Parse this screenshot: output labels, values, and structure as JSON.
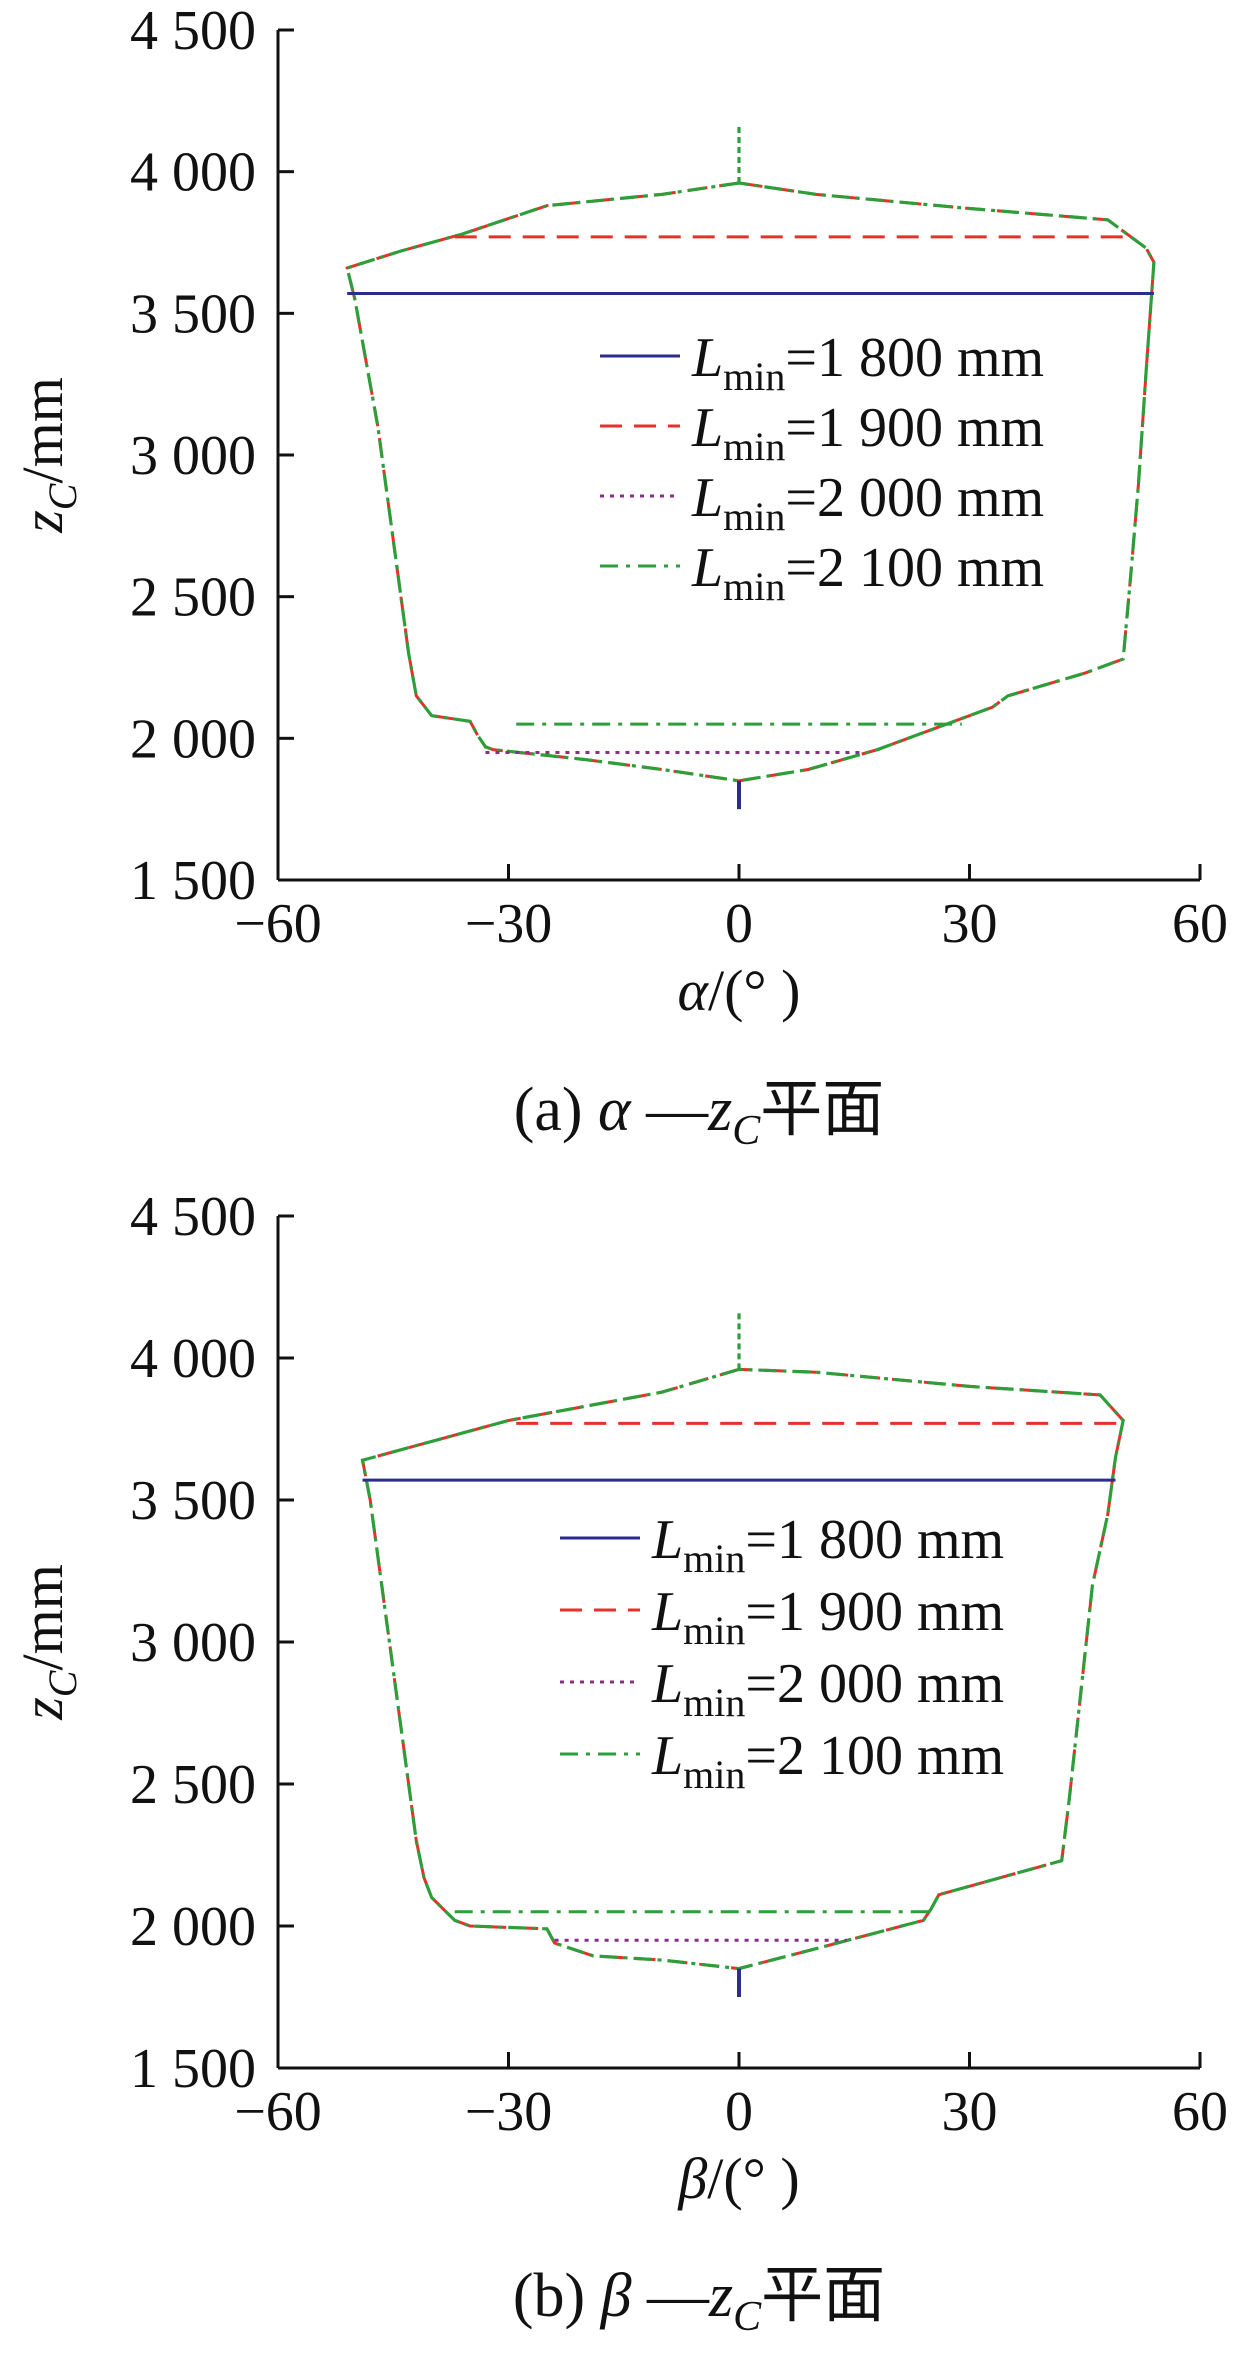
{
  "chart_data": [
    {
      "type": "line",
      "caption": {
        "label": "(a)",
        "var": "α",
        "dash": "—",
        "axis": "z",
        "axis_sub": "C",
        "suffix": "平面"
      },
      "xlabel": {
        "var": "α",
        "unit": "/(° )"
      },
      "ylabel": {
        "var": "z",
        "sub": "C",
        "unit": "/mm"
      },
      "xlim": [
        -60,
        60
      ],
      "ylim": [
        1500,
        4500
      ],
      "xticks": [
        -60,
        -30,
        0,
        30,
        60
      ],
      "xtick_labels": [
        "−60",
        "−30",
        "0",
        "30",
        "60"
      ],
      "yticks": [
        1500,
        2000,
        2500,
        3000,
        3500,
        4000,
        4500
      ],
      "ytick_labels": [
        "1 500",
        "2 000",
        "2 500",
        "3 000",
        "3 500",
        "4 000",
        "4 500"
      ],
      "legend_position": "right-center",
      "series": [
        {
          "label_var": "L",
          "label_sub": "min",
          "label_rest": "=1 800 mm",
          "color": "#2b2d8c",
          "dash": "solid",
          "x": [
            -51,
            54
          ],
          "y": [
            3570,
            3570
          ]
        },
        {
          "label_var": "L",
          "label_sub": "min",
          "label_rest": "=1 900 mm",
          "color": "#e8302a",
          "dash": "dashed",
          "x": [
            -37,
            50
          ],
          "y": [
            3770,
            3770
          ]
        },
        {
          "label_var": "L",
          "label_sub": "min",
          "label_rest": "=2 000 mm",
          "color": "#8b2d8b",
          "dash": "dotted",
          "x": [
            -33,
            16
          ],
          "y": [
            1950,
            1950
          ]
        },
        {
          "label_var": "L",
          "label_sub": "min",
          "label_rest": "=2 100 mm",
          "color": "#2e9e3a",
          "dash": "dashdot",
          "x": [
            -29,
            29
          ],
          "y": [
            2050,
            2050
          ]
        }
      ],
      "envelope": {
        "color": "#2e9e3a",
        "x": [
          0,
          -10,
          -25,
          -36,
          -44,
          -51,
          -50,
          -49,
          -48,
          -47,
          -46,
          -45,
          -44,
          -43,
          -42,
          -40,
          -35,
          -34,
          -33,
          -32,
          -20,
          -10,
          0,
          9,
          18,
          28,
          33,
          35,
          45,
          50,
          51,
          52,
          53,
          54,
          53,
          48,
          30,
          10,
          0
        ],
        "y": [
          3960,
          3920,
          3880,
          3780,
          3720,
          3660,
          3550,
          3400,
          3250,
          3100,
          2900,
          2700,
          2500,
          2300,
          2150,
          2080,
          2060,
          2010,
          1970,
          1960,
          1925,
          1890,
          1850,
          1890,
          1960,
          2060,
          2110,
          2150,
          2230,
          2280,
          2580,
          2900,
          3300,
          3680,
          3730,
          3830,
          3870,
          3920,
          3960
        ]
      },
      "spikes": [
        {
          "x": 0,
          "y_from": 3960,
          "y_to": 4170,
          "color": "#2e9e3a"
        },
        {
          "x": 0,
          "y_from": 1850,
          "y_to": 1750,
          "color": "#2b2d8c"
        }
      ]
    },
    {
      "type": "line",
      "caption": {
        "label": "(b)",
        "var": "β",
        "dash": "—",
        "axis": "z",
        "axis_sub": "C",
        "suffix": "平面"
      },
      "xlabel": {
        "var": "β",
        "unit": "/(° )"
      },
      "ylabel": {
        "var": "z",
        "sub": "C",
        "unit": "/mm"
      },
      "xlim": [
        -60,
        60
      ],
      "ylim": [
        1500,
        4500
      ],
      "xticks": [
        -60,
        -30,
        0,
        30,
        60
      ],
      "xtick_labels": [
        "−60",
        "−30",
        "0",
        "30",
        "60"
      ],
      "yticks": [
        1500,
        2000,
        2500,
        3000,
        3500,
        4000,
        4500
      ],
      "ytick_labels": [
        "1 500",
        "2 000",
        "2 500",
        "3 000",
        "3 500",
        "4 000",
        "4 500"
      ],
      "legend_position": "right-center",
      "series": [
        {
          "label_var": "L",
          "label_sub": "min",
          "label_rest": "=1 800 mm",
          "color": "#2b2d8c",
          "dash": "solid",
          "x": [
            -49,
            49
          ],
          "y": [
            3570,
            3570
          ]
        },
        {
          "label_var": "L",
          "label_sub": "min",
          "label_rest": "=1 900 mm",
          "color": "#e8302a",
          "dash": "dashed",
          "x": [
            -29,
            50
          ],
          "y": [
            3770,
            3770
          ]
        },
        {
          "label_var": "L",
          "label_sub": "min",
          "label_rest": "=2 000 mm",
          "color": "#8b2d8b",
          "dash": "dotted",
          "x": [
            -24,
            14
          ],
          "y": [
            1950,
            1950
          ]
        },
        {
          "label_var": "L",
          "label_sub": "min",
          "label_rest": "=2 100 mm",
          "color": "#2e9e3a",
          "dash": "dashdot",
          "x": [
            -37,
            25
          ],
          "y": [
            2050,
            2050
          ]
        }
      ],
      "envelope": {
        "color": "#2e9e3a",
        "x": [
          0,
          -10,
          -30,
          -49,
          -48,
          -47,
          -46,
          -45,
          -44,
          -43,
          -42,
          -41,
          -40,
          -37,
          -35,
          -25,
          -24,
          -19,
          -10,
          0,
          10,
          24,
          25,
          26,
          42,
          43,
          44,
          45,
          46,
          48,
          49,
          50,
          47,
          30,
          10,
          0
        ],
        "y": [
          3960,
          3880,
          3780,
          3640,
          3500,
          3300,
          3100,
          2900,
          2700,
          2500,
          2300,
          2170,
          2100,
          2020,
          2000,
          1990,
          1940,
          1895,
          1880,
          1850,
          1920,
          2020,
          2060,
          2110,
          2230,
          2450,
          2700,
          2950,
          3200,
          3450,
          3650,
          3780,
          3870,
          3900,
          3950,
          3960
        ]
      },
      "spikes": [
        {
          "x": 0,
          "y_from": 3960,
          "y_to": 4170,
          "color": "#2e9e3a"
        },
        {
          "x": 0,
          "y_from": 1850,
          "y_to": 1750,
          "color": "#2b2d8c"
        }
      ]
    }
  ]
}
